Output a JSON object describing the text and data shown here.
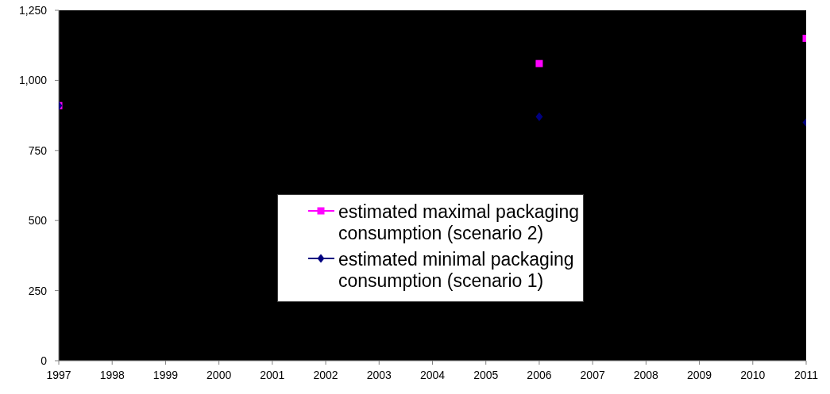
{
  "chart_data": {
    "type": "line",
    "x": [
      1997,
      1998,
      1999,
      2000,
      2001,
      2002,
      2003,
      2004,
      2005,
      2006,
      2007,
      2008,
      2009,
      2010,
      2011
    ],
    "xlim": [
      1997,
      2011
    ],
    "xticks": [
      1997,
      1998,
      1999,
      2000,
      2001,
      2002,
      2003,
      2004,
      2005,
      2006,
      2007,
      2008,
      2009,
      2010,
      2011
    ],
    "ylim": [
      0,
      1250
    ],
    "yticks": [
      0,
      250,
      500,
      750,
      {
        "value": 1000,
        "label": "1,000"
      },
      {
        "value": 1250,
        "label": "1,250"
      }
    ],
    "series": [
      {
        "name": "estimated maximal packaging consumption (scenario 2)",
        "color": "#ff00ff",
        "marker": "square",
        "values": [
          910,
          null,
          null,
          null,
          null,
          null,
          null,
          null,
          null,
          1060,
          null,
          null,
          null,
          null,
          1150
        ]
      },
      {
        "name": "estimated minimal packaging consumption (scenario 1)",
        "color": "#000080",
        "marker": "diamond",
        "values": [
          910,
          null,
          null,
          null,
          null,
          null,
          null,
          null,
          null,
          870,
          null,
          null,
          null,
          null,
          850
        ]
      }
    ],
    "legend": "center"
  }
}
